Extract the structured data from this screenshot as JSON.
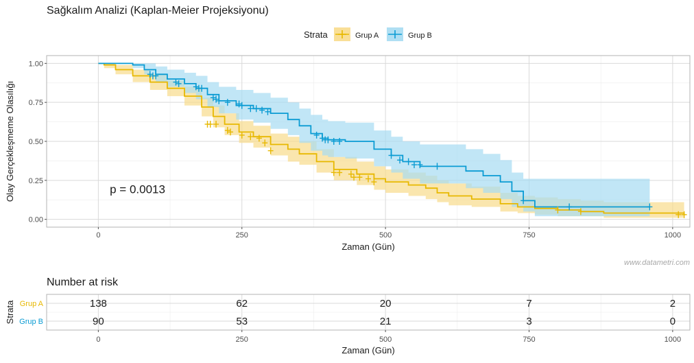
{
  "title": "Sağkalım Analizi (Kaplan-Meier Projeksiyonu)",
  "watermark": "www.datametri.com",
  "legend": {
    "title": "Strata",
    "position": "top",
    "items": [
      {
        "name": "Grup A",
        "color": "#E7B800"
      },
      {
        "name": "Grup B",
        "color": "#0A9BD3"
      }
    ]
  },
  "chart_data": [
    {
      "type": "line",
      "subtype": "kaplan-meier",
      "xlabel": "Zaman (Gün)",
      "ylabel": "Olay Gerçekleşmeme Olasılığı",
      "xlim": [
        -90,
        1030
      ],
      "ylim": [
        -0.05,
        1.05
      ],
      "x_ticks": [
        0,
        250,
        500,
        750,
        1000
      ],
      "y_ticks": [
        0,
        0.25,
        0.5,
        0.75,
        1.0
      ],
      "y_tick_labels": [
        "0.00",
        "0.25",
        "0.50",
        "0.75",
        "1.00"
      ],
      "grid": true,
      "annotation": "p = 0.0013",
      "annotation_pos": [
        20,
        0.195
      ],
      "series": [
        {
          "name": "Grup A",
          "color": "#E7B800",
          "fill": "#F8DC8C",
          "points": [
            [
              0,
              1.0
            ],
            [
              10,
              0.99
            ],
            [
              30,
              0.96
            ],
            [
              60,
              0.92
            ],
            [
              90,
              0.88
            ],
            [
              120,
              0.84
            ],
            [
              150,
              0.79
            ],
            [
              180,
              0.72
            ],
            [
              200,
              0.66
            ],
            [
              220,
              0.61
            ],
            [
              245,
              0.56
            ],
            [
              270,
              0.53
            ],
            [
              300,
              0.48
            ],
            [
              330,
              0.45
            ],
            [
              350,
              0.42
            ],
            [
              380,
              0.37
            ],
            [
              410,
              0.32
            ],
            [
              450,
              0.29
            ],
            [
              480,
              0.26
            ],
            [
              500,
              0.24
            ],
            [
              540,
              0.22
            ],
            [
              570,
              0.2
            ],
            [
              590,
              0.17
            ],
            [
              610,
              0.15
            ],
            [
              650,
              0.13
            ],
            [
              700,
              0.1
            ],
            [
              730,
              0.08
            ],
            [
              760,
              0.07
            ],
            [
              800,
              0.06
            ],
            [
              840,
              0.05
            ],
            [
              880,
              0.04
            ],
            [
              1020,
              0.03
            ]
          ],
          "upper": [
            [
              0,
              1.0
            ],
            [
              10,
              1.0
            ],
            [
              30,
              0.99
            ],
            [
              60,
              0.96
            ],
            [
              90,
              0.93
            ],
            [
              120,
              0.89
            ],
            [
              150,
              0.85
            ],
            [
              180,
              0.78
            ],
            [
              200,
              0.73
            ],
            [
              220,
              0.68
            ],
            [
              245,
              0.63
            ],
            [
              270,
              0.6
            ],
            [
              300,
              0.55
            ],
            [
              330,
              0.53
            ],
            [
              350,
              0.5
            ],
            [
              380,
              0.45
            ],
            [
              410,
              0.4
            ],
            [
              450,
              0.37
            ],
            [
              480,
              0.34
            ],
            [
              500,
              0.32
            ],
            [
              540,
              0.3
            ],
            [
              570,
              0.28
            ],
            [
              590,
              0.25
            ],
            [
              610,
              0.23
            ],
            [
              650,
              0.21
            ],
            [
              700,
              0.17
            ],
            [
              730,
              0.15
            ],
            [
              760,
              0.14
            ],
            [
              800,
              0.13
            ],
            [
              840,
              0.12
            ],
            [
              880,
              0.11
            ],
            [
              1020,
              0.11
            ]
          ],
          "lower": [
            [
              0,
              1.0
            ],
            [
              10,
              0.97
            ],
            [
              30,
              0.93
            ],
            [
              60,
              0.88
            ],
            [
              90,
              0.83
            ],
            [
              120,
              0.79
            ],
            [
              150,
              0.73
            ],
            [
              180,
              0.66
            ],
            [
              200,
              0.59
            ],
            [
              220,
              0.54
            ],
            [
              245,
              0.49
            ],
            [
              270,
              0.46
            ],
            [
              300,
              0.41
            ],
            [
              330,
              0.37
            ],
            [
              350,
              0.35
            ],
            [
              380,
              0.3
            ],
            [
              410,
              0.25
            ],
            [
              450,
              0.22
            ],
            [
              480,
              0.19
            ],
            [
              500,
              0.17
            ],
            [
              540,
              0.15
            ],
            [
              570,
              0.13
            ],
            [
              590,
              0.11
            ],
            [
              610,
              0.09
            ],
            [
              650,
              0.08
            ],
            [
              700,
              0.05
            ],
            [
              730,
              0.04
            ],
            [
              760,
              0.03
            ],
            [
              800,
              0.02
            ],
            [
              840,
              0.02
            ],
            [
              880,
              0.01
            ],
            [
              1020,
              0.0
            ]
          ],
          "censored": [
            [
              190,
              0.61
            ],
            [
              195,
              0.61
            ],
            [
              205,
              0.61
            ],
            [
              225,
              0.57
            ],
            [
              230,
              0.56
            ],
            [
              250,
              0.54
            ],
            [
              265,
              0.53
            ],
            [
              280,
              0.52
            ],
            [
              290,
              0.49
            ],
            [
              300,
              0.44
            ],
            [
              410,
              0.3
            ],
            [
              420,
              0.3
            ],
            [
              440,
              0.29
            ],
            [
              445,
              0.27
            ],
            [
              455,
              0.27
            ],
            [
              470,
              0.26
            ],
            [
              480,
              0.24
            ],
            [
              800,
              0.06
            ],
            [
              840,
              0.05
            ],
            [
              1010,
              0.03
            ],
            [
              1020,
              0.03
            ]
          ]
        },
        {
          "name": "Grup B",
          "color": "#0A9BD3",
          "fill": "#A6DBF2",
          "points": [
            [
              0,
              1.0
            ],
            [
              60,
              0.99
            ],
            [
              80,
              0.96
            ],
            [
              100,
              0.93
            ],
            [
              120,
              0.9
            ],
            [
              150,
              0.87
            ],
            [
              170,
              0.84
            ],
            [
              190,
              0.8
            ],
            [
              210,
              0.76
            ],
            [
              240,
              0.73
            ],
            [
              270,
              0.71
            ],
            [
              300,
              0.68
            ],
            [
              330,
              0.64
            ],
            [
              350,
              0.6
            ],
            [
              370,
              0.55
            ],
            [
              390,
              0.52
            ],
            [
              400,
              0.51
            ],
            [
              430,
              0.5
            ],
            [
              480,
              0.45
            ],
            [
              510,
              0.41
            ],
            [
              530,
              0.37
            ],
            [
              560,
              0.34
            ],
            [
              610,
              0.34
            ],
            [
              640,
              0.31
            ],
            [
              670,
              0.28
            ],
            [
              700,
              0.24
            ],
            [
              720,
              0.18
            ],
            [
              740,
              0.12
            ],
            [
              760,
              0.08
            ],
            [
              960,
              0.08
            ]
          ],
          "upper": [
            [
              0,
              1.0
            ],
            [
              60,
              1.0
            ],
            [
              80,
              1.0
            ],
            [
              100,
              0.98
            ],
            [
              120,
              0.96
            ],
            [
              150,
              0.94
            ],
            [
              170,
              0.92
            ],
            [
              190,
              0.88
            ],
            [
              210,
              0.85
            ],
            [
              240,
              0.83
            ],
            [
              270,
              0.81
            ],
            [
              300,
              0.78
            ],
            [
              330,
              0.75
            ],
            [
              350,
              0.71
            ],
            [
              370,
              0.67
            ],
            [
              390,
              0.64
            ],
            [
              400,
              0.63
            ],
            [
              430,
              0.62
            ],
            [
              480,
              0.57
            ],
            [
              510,
              0.53
            ],
            [
              530,
              0.5
            ],
            [
              560,
              0.48
            ],
            [
              610,
              0.48
            ],
            [
              640,
              0.45
            ],
            [
              670,
              0.42
            ],
            [
              700,
              0.38
            ],
            [
              720,
              0.3
            ],
            [
              740,
              0.26
            ],
            [
              760,
              0.26
            ],
            [
              960,
              0.26
            ]
          ],
          "lower": [
            [
              0,
              1.0
            ],
            [
              60,
              0.97
            ],
            [
              80,
              0.93
            ],
            [
              100,
              0.88
            ],
            [
              120,
              0.85
            ],
            [
              150,
              0.81
            ],
            [
              170,
              0.77
            ],
            [
              190,
              0.72
            ],
            [
              210,
              0.68
            ],
            [
              240,
              0.64
            ],
            [
              270,
              0.62
            ],
            [
              300,
              0.58
            ],
            [
              330,
              0.54
            ],
            [
              350,
              0.49
            ],
            [
              370,
              0.44
            ],
            [
              390,
              0.41
            ],
            [
              400,
              0.4
            ],
            [
              430,
              0.39
            ],
            [
              480,
              0.34
            ],
            [
              510,
              0.3
            ],
            [
              530,
              0.26
            ],
            [
              560,
              0.23
            ],
            [
              610,
              0.23
            ],
            [
              640,
              0.2
            ],
            [
              670,
              0.17
            ],
            [
              700,
              0.13
            ],
            [
              720,
              0.08
            ],
            [
              740,
              0.05
            ],
            [
              760,
              0.02
            ],
            [
              960,
              0.02
            ]
          ],
          "censored": [
            [
              90,
              0.93
            ],
            [
              95,
              0.92
            ],
            [
              100,
              0.92
            ],
            [
              135,
              0.88
            ],
            [
              140,
              0.87
            ],
            [
              170,
              0.85
            ],
            [
              175,
              0.84
            ],
            [
              180,
              0.84
            ],
            [
              200,
              0.78
            ],
            [
              205,
              0.77
            ],
            [
              210,
              0.76
            ],
            [
              225,
              0.75
            ],
            [
              245,
              0.74
            ],
            [
              250,
              0.73
            ],
            [
              265,
              0.71
            ],
            [
              275,
              0.71
            ],
            [
              285,
              0.7
            ],
            [
              295,
              0.69
            ],
            [
              380,
              0.54
            ],
            [
              390,
              0.52
            ],
            [
              395,
              0.51
            ],
            [
              400,
              0.51
            ],
            [
              410,
              0.5
            ],
            [
              420,
              0.5
            ],
            [
              510,
              0.41
            ],
            [
              525,
              0.38
            ],
            [
              540,
              0.37
            ],
            [
              550,
              0.35
            ],
            [
              560,
              0.35
            ],
            [
              590,
              0.34
            ],
            [
              740,
              0.12
            ],
            [
              820,
              0.08
            ],
            [
              960,
              0.08
            ]
          ]
        }
      ]
    },
    {
      "type": "table",
      "title": "Number at risk",
      "ylabel": "Strata",
      "xlabel": "Zaman (Gün)",
      "x_ticks": [
        0,
        250,
        500,
        750,
        1000
      ],
      "xlim": [
        -90,
        1030
      ],
      "rows": [
        {
          "name": "Grup A",
          "color": "#E7B800",
          "values": [
            138,
            62,
            20,
            7,
            2
          ]
        },
        {
          "name": "Grup B",
          "color": "#0A9BD3",
          "values": [
            90,
            53,
            21,
            3,
            0
          ]
        }
      ]
    }
  ]
}
